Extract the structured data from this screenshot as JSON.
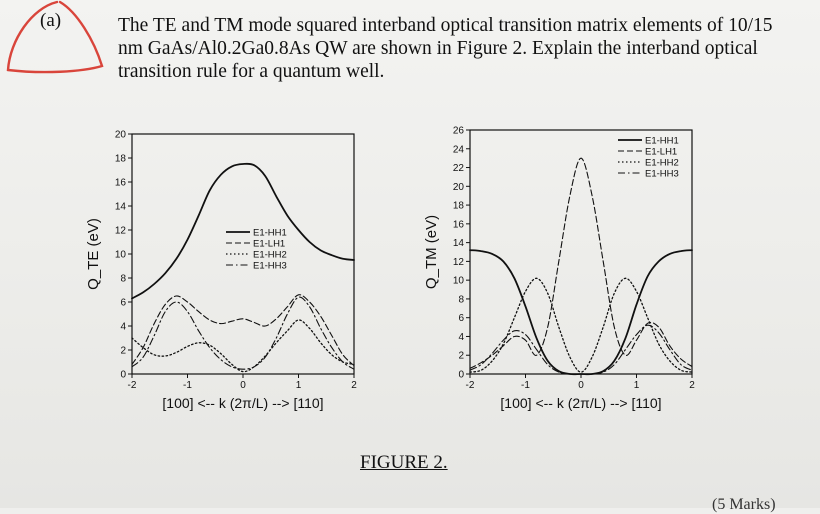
{
  "part_label": "(a)",
  "question": "The TE and TM mode squared interband optical transition matrix elements of 10/15 nm GaAs/Al0.2Ga0.8As QW are shown in Figure 2. Explain the interband optical transition rule for a quantum well.",
  "figure_caption": "FIGURE 2.",
  "marks": "(5 Marks)",
  "colors": {
    "ink": "#111111",
    "annotation": "#d9453b",
    "paper": "#efefed"
  },
  "chart_data": [
    {
      "type": "line",
      "title": "",
      "xlabel": "[100] <-- k (2π/L) --> [110]",
      "ylabel": "Q_TE (eV)",
      "xlim": [
        -2,
        2
      ],
      "ylim": [
        0,
        20
      ],
      "xticks": [
        -2,
        -1,
        0,
        1,
        2
      ],
      "yticks": [
        0,
        2,
        4,
        6,
        8,
        10,
        12,
        14,
        16,
        18,
        20
      ],
      "legend": [
        "E1-HH1",
        "E1-LH1",
        "E1-HH2",
        "E1-HH3"
      ],
      "legend_position": "center-right",
      "series": [
        {
          "name": "E1-HH1",
          "style": "solid",
          "x": [
            -2,
            -1.8,
            -1.6,
            -1.4,
            -1.2,
            -1.0,
            -0.8,
            -0.6,
            -0.4,
            -0.2,
            0,
            0.2,
            0.4,
            0.6,
            0.8,
            1.0,
            1.2,
            1.4,
            1.6,
            1.8,
            2.0
          ],
          "y": [
            6.3,
            6.8,
            7.5,
            8.4,
            9.6,
            11.2,
            13.2,
            15.3,
            16.6,
            17.3,
            17.5,
            17.4,
            16.5,
            14.8,
            13.2,
            12.0,
            11.0,
            10.3,
            9.9,
            9.6,
            9.5
          ]
        },
        {
          "name": "E1-LH1",
          "style": "dashed",
          "x": [
            -2,
            -1.8,
            -1.6,
            -1.4,
            -1.2,
            -1.0,
            -0.8,
            -0.6,
            -0.4,
            -0.2,
            0,
            0.2,
            0.4,
            0.6,
            0.8,
            1.0,
            1.2,
            1.4,
            1.6,
            1.8,
            2.0
          ],
          "y": [
            0.8,
            2.2,
            4.2,
            5.8,
            6.5,
            6.0,
            5.2,
            4.5,
            4.2,
            4.4,
            4.6,
            4.3,
            4.0,
            4.6,
            5.6,
            6.6,
            6.0,
            4.8,
            3.2,
            1.6,
            0.7
          ]
        },
        {
          "name": "E1-HH2",
          "style": "dotted",
          "x": [
            -2,
            -1.8,
            -1.6,
            -1.4,
            -1.2,
            -1.0,
            -0.8,
            -0.6,
            -0.4,
            -0.2,
            0,
            0.2,
            0.4,
            0.6,
            0.8,
            1.0,
            1.2,
            1.4,
            1.6,
            1.8,
            2.0
          ],
          "y": [
            3.0,
            2.2,
            1.6,
            1.5,
            1.8,
            2.3,
            2.6,
            2.4,
            1.7,
            0.8,
            0.2,
            0.6,
            1.5,
            2.6,
            3.6,
            4.5,
            3.8,
            2.6,
            1.6,
            1.0,
            0.8
          ]
        },
        {
          "name": "E1-HH3",
          "style": "dashdot",
          "x": [
            -2,
            -1.8,
            -1.6,
            -1.4,
            -1.2,
            -1.0,
            -0.8,
            -0.6,
            -0.4,
            -0.2,
            0,
            0.2,
            0.4,
            0.6,
            0.8,
            1.0,
            1.2,
            1.4,
            1.6,
            1.8,
            2.0
          ],
          "y": [
            0.6,
            1.4,
            3.2,
            5.2,
            6.0,
            5.2,
            3.6,
            2.2,
            1.2,
            0.6,
            0.4,
            0.6,
            1.4,
            3.0,
            5.0,
            6.4,
            5.6,
            3.8,
            2.2,
            1.0,
            0.4
          ]
        }
      ]
    },
    {
      "type": "line",
      "title": "",
      "xlabel": "[100] <-- k (2π/L) --> [110]",
      "ylabel": "Q_TM (eV)",
      "xlim": [
        -2,
        2
      ],
      "ylim": [
        0,
        26
      ],
      "xticks": [
        -2,
        -1,
        0,
        1,
        2
      ],
      "yticks": [
        0,
        2,
        4,
        6,
        8,
        10,
        12,
        14,
        16,
        18,
        20,
        22,
        24,
        26
      ],
      "legend": [
        "E1-HH1",
        "E1-LH1",
        "E1-HH2",
        "E1-HH3"
      ],
      "legend_position": "top-right",
      "series": [
        {
          "name": "E1-HH1",
          "style": "solid",
          "x": [
            -2,
            -1.8,
            -1.6,
            -1.4,
            -1.2,
            -1.0,
            -0.8,
            -0.6,
            -0.4,
            -0.2,
            0,
            0.2,
            0.4,
            0.6,
            0.8,
            1.0,
            1.2,
            1.4,
            1.6,
            1.8,
            2.0
          ],
          "y": [
            13.2,
            13.1,
            12.8,
            12.0,
            10.2,
            7.2,
            3.8,
            1.4,
            0.3,
            0.0,
            0.0,
            0.0,
            0.3,
            1.4,
            3.8,
            7.4,
            10.4,
            12.0,
            12.8,
            13.1,
            13.2
          ]
        },
        {
          "name": "E1-LH1",
          "style": "dashed",
          "x": [
            -2,
            -1.8,
            -1.6,
            -1.4,
            -1.2,
            -1.0,
            -0.8,
            -0.6,
            -0.4,
            -0.2,
            0,
            0.2,
            0.4,
            0.6,
            0.8,
            1.0,
            1.2,
            1.4,
            1.6,
            1.8,
            2.0
          ],
          "y": [
            0.6,
            1.2,
            2.0,
            3.0,
            4.0,
            3.6,
            2.0,
            5.0,
            12.0,
            19.0,
            23.0,
            19.0,
            12.0,
            5.0,
            2.0,
            3.6,
            5.4,
            5.0,
            3.0,
            1.6,
            0.8
          ]
        },
        {
          "name": "E1-HH2",
          "style": "dotted",
          "x": [
            -2,
            -1.8,
            -1.6,
            -1.4,
            -1.2,
            -1.0,
            -0.8,
            -0.6,
            -0.4,
            -0.2,
            0,
            0.2,
            0.4,
            0.6,
            0.8,
            1.0,
            1.2,
            1.4,
            1.6,
            1.8,
            2.0
          ],
          "y": [
            0.2,
            0.4,
            1.4,
            3.2,
            6.0,
            8.8,
            10.2,
            8.6,
            5.0,
            1.8,
            0.2,
            1.8,
            5.0,
            8.6,
            10.2,
            8.8,
            6.0,
            3.2,
            1.4,
            0.4,
            0.2
          ]
        },
        {
          "name": "E1-HH3",
          "style": "dashdot",
          "x": [
            -2,
            -1.8,
            -1.6,
            -1.4,
            -1.2,
            -1.0,
            -0.8,
            -0.6,
            -0.4,
            -0.2,
            0,
            0.2,
            0.4,
            0.6,
            0.8,
            1.0,
            1.2,
            1.4,
            1.6,
            1.8,
            2.0
          ],
          "y": [
            0.4,
            1.0,
            2.2,
            3.6,
            4.6,
            4.2,
            2.6,
            1.0,
            0.2,
            0.0,
            0.0,
            0.0,
            0.2,
            1.0,
            2.6,
            4.2,
            5.2,
            4.4,
            2.6,
            1.0,
            0.4
          ]
        }
      ]
    }
  ]
}
